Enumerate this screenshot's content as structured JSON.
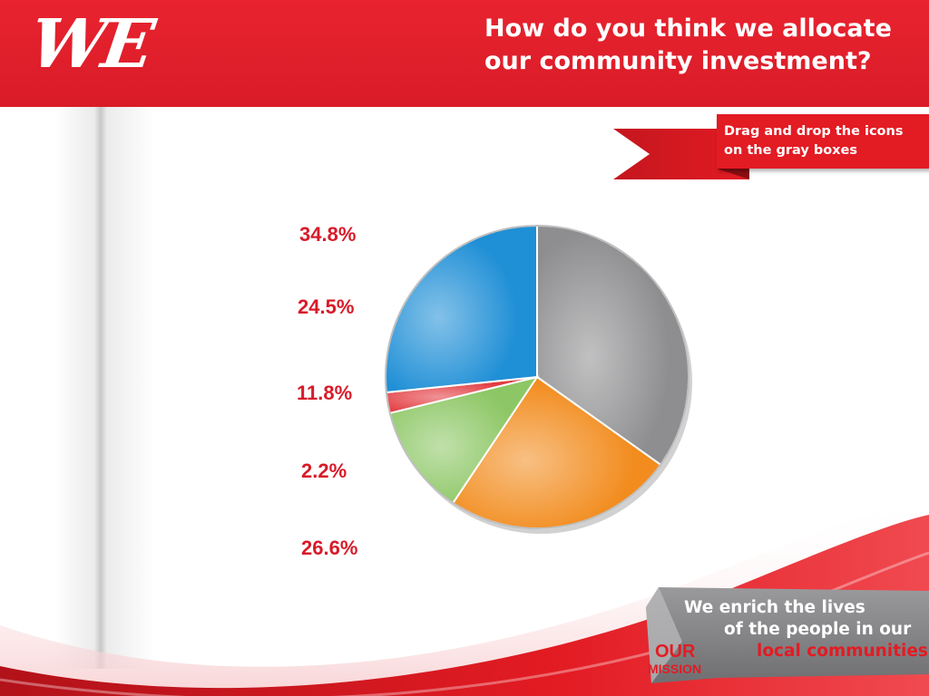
{
  "header": {
    "logo": "WE",
    "title_line1": "How do you think we allocate",
    "title_line2": "our community investment?"
  },
  "instruction": {
    "line1": "Drag and drop the icons",
    "line2": "on the gray boxes"
  },
  "mission": {
    "badge_line1": "OUR",
    "badge_line2": "MISSION",
    "line1": "We enrich the lives",
    "line2": "of the people in our",
    "line3": "local communities"
  },
  "colors": {
    "brand_red": "#e31b23",
    "gray": "#8e8e90",
    "orange": "#f28c1e",
    "green": "#8dc765",
    "red_slice": "#e23a3f",
    "blue": "#1f8fd6"
  },
  "chart_data": {
    "type": "pie",
    "slices": [
      {
        "value": 34.8,
        "color": "#8e8e90"
      },
      {
        "value": 24.5,
        "color": "#f28c1e"
      },
      {
        "value": 11.8,
        "color": "#8dc765"
      },
      {
        "value": 2.2,
        "color": "#e23a3f"
      },
      {
        "value": 26.6,
        "color": "#1f8fd6"
      }
    ],
    "labels": [
      "34.8%",
      "24.5%",
      "11.8%",
      "2.2%",
      "26.6%"
    ],
    "start_angle_deg": 0,
    "direction": "clockwise",
    "legend": "left"
  }
}
